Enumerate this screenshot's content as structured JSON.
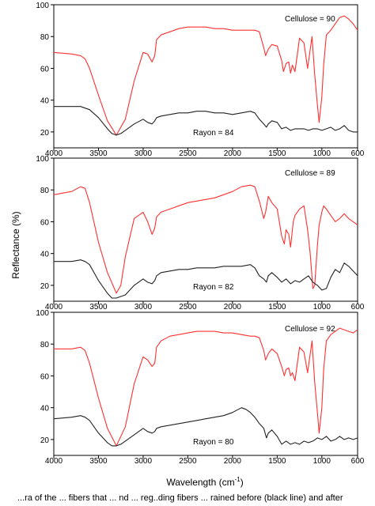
{
  "figure": {
    "ylabel": "Reflectance (%)",
    "xlabel_main": "Wavelength (cm",
    "xlabel_sup": "-1",
    "xlabel_end": ")",
    "caption": "...ra of the ... fibers that ... nd ... reg..ding fibers ... rained before (black line) and after"
  },
  "chart_data": [
    {
      "type": "line",
      "xlim": [
        4000,
        600
      ],
      "ylim": [
        10,
        100
      ],
      "xticks": [
        4000,
        3500,
        3000,
        2500,
        2000,
        1500,
        1000,
        600
      ],
      "yticks": [
        20,
        40,
        60,
        80,
        100
      ],
      "grid": false,
      "annotations": [
        "Cellulose = 90",
        "Rayon = 84"
      ],
      "series": [
        {
          "color": "#ff3030",
          "x": [
            4000,
            3800,
            3700,
            3650,
            3600,
            3500,
            3400,
            3300,
            3200,
            3100,
            3000,
            2950,
            2900,
            2870,
            2850,
            2800,
            2700,
            2600,
            2500,
            2400,
            2300,
            2200,
            2100,
            2000,
            1900,
            1800,
            1750,
            1700,
            1650,
            1630,
            1600,
            1560,
            1500,
            1450,
            1430,
            1400,
            1370,
            1350,
            1330,
            1300,
            1250,
            1200,
            1160,
            1110,
            1080,
            1050,
            1030,
            1000,
            980,
            950,
            900,
            850,
            800,
            750,
            700,
            650,
            600
          ],
          "y": [
            70,
            69,
            68,
            66,
            60,
            43,
            27,
            18,
            28,
            52,
            70,
            69,
            64,
            68,
            78,
            81,
            83,
            85,
            86,
            86,
            86,
            85,
            85,
            84,
            84,
            84,
            84,
            83,
            73,
            68,
            72,
            75,
            74,
            65,
            58,
            63,
            64,
            57,
            62,
            58,
            79,
            76,
            60,
            80,
            56,
            37,
            26,
            42,
            62,
            81,
            84,
            88,
            92,
            93,
            91,
            88,
            84
          ]
        },
        {
          "color": "#222222",
          "x": [
            4000,
            3800,
            3700,
            3650,
            3600,
            3500,
            3400,
            3350,
            3300,
            3250,
            3200,
            3100,
            3000,
            2950,
            2900,
            2870,
            2850,
            2800,
            2700,
            2600,
            2500,
            2400,
            2300,
            2200,
            2100,
            2000,
            1900,
            1800,
            1750,
            1700,
            1650,
            1620,
            1600,
            1560,
            1500,
            1450,
            1400,
            1350,
            1300,
            1250,
            1200,
            1150,
            1100,
            1050,
            1000,
            950,
            900,
            850,
            800,
            750,
            700,
            650,
            600
          ],
          "y": [
            36,
            36,
            36,
            35,
            34,
            29,
            22,
            19,
            18,
            19,
            21,
            25,
            28,
            26,
            25,
            27,
            29,
            30,
            31,
            32,
            32,
            33,
            33,
            32,
            32,
            31,
            32,
            33,
            32,
            28,
            25,
            23,
            25,
            27,
            26,
            22,
            23,
            21,
            22,
            22,
            22,
            21,
            22,
            22,
            21,
            22,
            23,
            21,
            22,
            24,
            21,
            20,
            20
          ]
        }
      ]
    },
    {
      "type": "line",
      "xlim": [
        4000,
        600
      ],
      "ylim": [
        10,
        100
      ],
      "xticks": [
        4000,
        3500,
        3000,
        2500,
        2000,
        1500,
        1000,
        600
      ],
      "yticks": [
        20,
        40,
        60,
        80,
        100
      ],
      "grid": false,
      "annotations": [
        "Cellulose = 89",
        "Rayon = 82"
      ],
      "series": [
        {
          "color": "#ff3030",
          "x": [
            4000,
            3800,
            3700,
            3650,
            3600,
            3500,
            3400,
            3300,
            3250,
            3200,
            3100,
            3000,
            2950,
            2900,
            2870,
            2850,
            2800,
            2700,
            2600,
            2500,
            2400,
            2300,
            2200,
            2100,
            2000,
            1900,
            1800,
            1750,
            1700,
            1650,
            1630,
            1600,
            1560,
            1500,
            1450,
            1420,
            1400,
            1370,
            1350,
            1320,
            1300,
            1250,
            1200,
            1160,
            1130,
            1100,
            1080,
            1050,
            1030,
            1000,
            980,
            950,
            900,
            850,
            800,
            750,
            700,
            650,
            600
          ],
          "y": [
            77,
            79,
            82,
            81,
            72,
            47,
            28,
            15,
            20,
            38,
            62,
            66,
            60,
            52,
            56,
            63,
            66,
            68,
            70,
            72,
            73,
            74,
            75,
            77,
            79,
            82,
            83,
            82,
            73,
            62,
            66,
            76,
            72,
            68,
            51,
            46,
            55,
            52,
            44,
            60,
            64,
            68,
            70,
            55,
            40,
            18,
            20,
            45,
            58,
            66,
            70,
            68,
            64,
            60,
            62,
            65,
            62,
            60,
            58
          ]
        },
        {
          "color": "#222222",
          "x": [
            4000,
            3800,
            3700,
            3650,
            3600,
            3500,
            3400,
            3350,
            3300,
            3250,
            3200,
            3100,
            3000,
            2950,
            2900,
            2870,
            2850,
            2800,
            2700,
            2600,
            2500,
            2400,
            2300,
            2200,
            2100,
            2000,
            1900,
            1800,
            1750,
            1700,
            1650,
            1620,
            1600,
            1560,
            1500,
            1450,
            1400,
            1350,
            1300,
            1250,
            1200,
            1150,
            1100,
            1050,
            1000,
            950,
            900,
            850,
            800,
            750,
            700,
            650,
            600
          ],
          "y": [
            35,
            35,
            36,
            35,
            33,
            23,
            15,
            12,
            12,
            13,
            14,
            20,
            24,
            22,
            21,
            23,
            26,
            28,
            29,
            30,
            30,
            31,
            31,
            31,
            32,
            32,
            32,
            33,
            31,
            26,
            24,
            22,
            26,
            28,
            25,
            22,
            24,
            21,
            23,
            22,
            24,
            26,
            22,
            20,
            17,
            18,
            25,
            30,
            28,
            34,
            32,
            29,
            26
          ]
        }
      ]
    },
    {
      "type": "line",
      "xlim": [
        4000,
        600
      ],
      "ylim": [
        10,
        100
      ],
      "xticks": [
        4000,
        3500,
        3000,
        2500,
        2000,
        1500,
        1000,
        600
      ],
      "yticks": [
        20,
        40,
        60,
        80,
        100
      ],
      "grid": false,
      "annotations": [
        "Cellulose = 92",
        "Rayon = 80"
      ],
      "series": [
        {
          "color": "#ff3030",
          "x": [
            4000,
            3800,
            3700,
            3650,
            3600,
            3500,
            3400,
            3300,
            3200,
            3100,
            3000,
            2950,
            2900,
            2870,
            2850,
            2800,
            2700,
            2600,
            2500,
            2400,
            2300,
            2200,
            2100,
            2000,
            1900,
            1800,
            1750,
            1700,
            1650,
            1630,
            1600,
            1560,
            1500,
            1450,
            1420,
            1400,
            1370,
            1350,
            1330,
            1300,
            1250,
            1200,
            1160,
            1110,
            1080,
            1050,
            1030,
            1000,
            980,
            950,
            900,
            850,
            800,
            750,
            700,
            650,
            600
          ],
          "y": [
            77,
            77,
            78,
            76,
            68,
            46,
            27,
            16,
            28,
            55,
            72,
            70,
            66,
            68,
            78,
            82,
            85,
            86,
            87,
            88,
            88,
            88,
            87,
            87,
            86,
            85,
            85,
            84,
            76,
            70,
            74,
            77,
            74,
            66,
            60,
            64,
            65,
            60,
            62,
            57,
            78,
            75,
            62,
            82,
            56,
            37,
            24,
            40,
            64,
            82,
            86,
            88,
            90,
            89,
            88,
            87,
            89
          ]
        },
        {
          "color": "#222222",
          "x": [
            4000,
            3800,
            3700,
            3650,
            3600,
            3500,
            3400,
            3350,
            3300,
            3250,
            3200,
            3100,
            3000,
            2950,
            2900,
            2870,
            2850,
            2800,
            2700,
            2600,
            2500,
            2400,
            2300,
            2200,
            2100,
            2000,
            1900,
            1850,
            1800,
            1750,
            1700,
            1650,
            1620,
            1600,
            1560,
            1500,
            1450,
            1400,
            1350,
            1300,
            1250,
            1200,
            1150,
            1100,
            1050,
            1000,
            950,
            900,
            850,
            800,
            750,
            700,
            650,
            600
          ],
          "y": [
            33,
            34,
            35,
            34,
            32,
            24,
            18,
            16,
            16,
            17,
            19,
            23,
            27,
            25,
            24,
            25,
            27,
            28,
            29,
            30,
            31,
            32,
            33,
            34,
            35,
            37,
            40,
            39,
            37,
            34,
            30,
            27,
            21,
            24,
            26,
            22,
            17,
            19,
            17,
            18,
            17,
            19,
            18,
            19,
            21,
            20,
            22,
            19,
            20,
            22,
            20,
            21,
            20,
            21
          ]
        }
      ]
    }
  ]
}
